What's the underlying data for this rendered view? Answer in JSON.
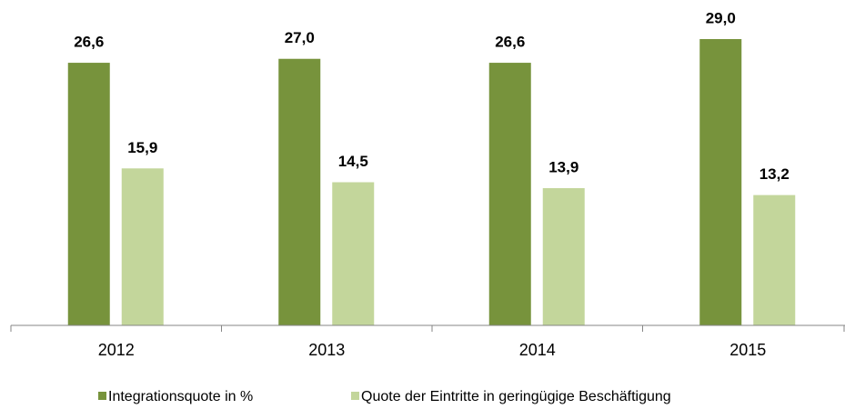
{
  "chart_data": {
    "type": "bar",
    "categories": [
      "2012",
      "2013",
      "2014",
      "2015"
    ],
    "series": [
      {
        "name": "Integrationsquote in %",
        "color": "#77933c",
        "values": [
          26.6,
          27.0,
          26.6,
          29.0
        ],
        "value_labels": [
          "26,6",
          "27,0",
          "26,6",
          "29,0"
        ]
      },
      {
        "name": "Quote der Eintritte in geringügige Beschäftigung",
        "color": "#c3d69b",
        "values": [
          15.9,
          14.5,
          13.9,
          13.2
        ],
        "value_labels": [
          "15,9",
          "14,5",
          "13,9",
          "13,2"
        ]
      }
    ],
    "legend": "bottom"
  }
}
